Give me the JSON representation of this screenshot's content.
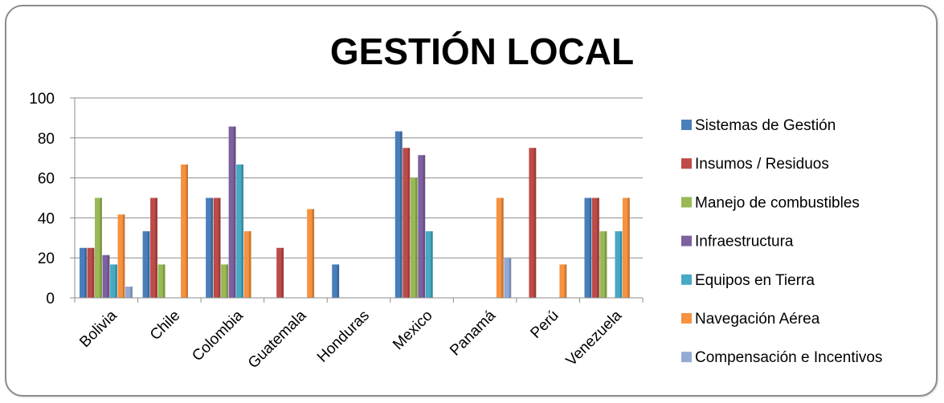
{
  "chart_data": {
    "type": "bar",
    "title": "GESTIÓN LOCAL",
    "xlabel": "",
    "ylabel": "",
    "ylim": [
      0,
      100
    ],
    "yticks": [
      0,
      20,
      40,
      60,
      80,
      100
    ],
    "grid": true,
    "legend_position": "right",
    "categories": [
      "Bolivia",
      "Chile",
      "Colombia",
      "Guatemala",
      "Honduras",
      "Mexico",
      "Panamá",
      "Perú",
      "Venezuela"
    ],
    "series": [
      {
        "name": "Sistemas de Gestión",
        "color": "#4a7ebb",
        "values": [
          25,
          33.3,
          50,
          0,
          16.7,
          83.3,
          0,
          0,
          50
        ]
      },
      {
        "name": "Insumos / Residuos",
        "color": "#be4b48",
        "values": [
          25,
          50,
          50,
          25,
          0,
          75,
          0,
          75,
          50
        ]
      },
      {
        "name": "Manejo de combustibles",
        "color": "#98b954",
        "values": [
          50,
          16.7,
          16.7,
          0,
          0,
          60,
          0,
          0,
          33.3
        ]
      },
      {
        "name": "Infraestructura",
        "color": "#7d60a0",
        "values": [
          21.4,
          0,
          85.7,
          0,
          0,
          71.4,
          0,
          0,
          0
        ]
      },
      {
        "name": "Equipos en Tierra",
        "color": "#46aac5",
        "values": [
          16.7,
          0,
          66.7,
          0,
          0,
          33.3,
          0,
          0,
          33.3
        ]
      },
      {
        "name": "Navegación Aérea",
        "color": "#f69240",
        "values": [
          41.7,
          66.7,
          33.3,
          44.4,
          0,
          0,
          50,
          16.7,
          50
        ]
      },
      {
        "name": "Compensación e Incentivos",
        "color": "#94aad6",
        "values": [
          5.6,
          0,
          0,
          0,
          0,
          0,
          20,
          0,
          0
        ]
      }
    ]
  }
}
